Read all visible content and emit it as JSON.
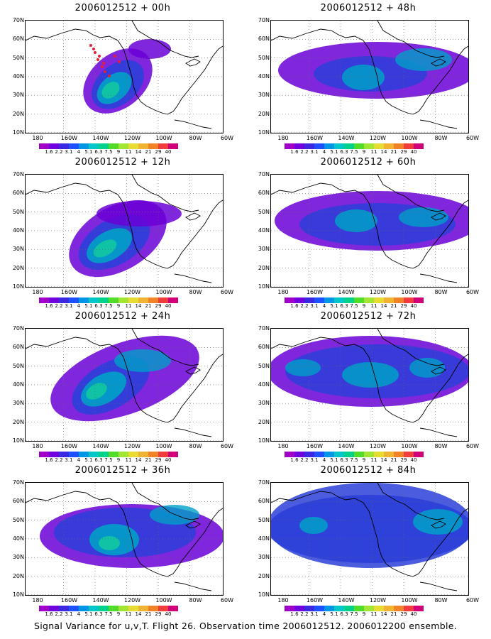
{
  "panels": [
    {
      "title": "2006012512 + 00h",
      "blobs": [
        [
          130,
          85,
          55,
          38,
          -40,
          "#6a00d6",
          0.85
        ],
        [
          130,
          90,
          42,
          28,
          -40,
          "#2b3fd8",
          0.9
        ],
        [
          125,
          95,
          28,
          18,
          -40,
          "#00a0c8",
          0.9
        ],
        [
          120,
          98,
          14,
          10,
          -40,
          "#11c8a0",
          0.9
        ],
        [
          175,
          40,
          30,
          14,
          0,
          "#6a00d6",
          0.85
        ]
      ],
      "markers": true
    },
    {
      "title": "2006012512 + 48h",
      "blobs": [
        [
          150,
          70,
          140,
          40,
          0,
          "#6a00d6",
          0.85
        ],
        [
          140,
          75,
          80,
          25,
          0,
          "#2b3fd8",
          0.85
        ],
        [
          130,
          80,
          30,
          18,
          0,
          "#00a0c8",
          0.85
        ],
        [
          215,
          55,
          40,
          16,
          0,
          "#00a0c8",
          0.8
        ]
      ],
      "markers": false
    },
    {
      "title": "2006012512 + 12h",
      "blobs": [
        [
          130,
          90,
          75,
          45,
          -30,
          "#6a00d6",
          0.85
        ],
        [
          125,
          95,
          55,
          32,
          -30,
          "#2b3fd8",
          0.9
        ],
        [
          118,
          100,
          35,
          20,
          -30,
          "#00a0c8",
          0.9
        ],
        [
          112,
          104,
          18,
          10,
          -30,
          "#11c8a0",
          0.9
        ],
        [
          160,
          55,
          60,
          18,
          0,
          "#6a00d6",
          0.85
        ]
      ],
      "markers": false
    },
    {
      "title": "2006012512 + 60h",
      "blobs": [
        [
          150,
          65,
          145,
          42,
          0,
          "#6a00d6",
          0.85
        ],
        [
          150,
          70,
          110,
          30,
          0,
          "#2b3fd8",
          0.85
        ],
        [
          120,
          65,
          30,
          16,
          0,
          "#00a0c8",
          0.85
        ],
        [
          215,
          60,
          35,
          14,
          0,
          "#00a0c8",
          0.8
        ]
      ],
      "markers": false
    },
    {
      "title": "2006012512 + 24h",
      "blobs": [
        [
          140,
          70,
          110,
          50,
          -20,
          "#6a00d6",
          0.85
        ],
        [
          120,
          80,
          60,
          32,
          -30,
          "#2b3fd8",
          0.9
        ],
        [
          110,
          85,
          35,
          20,
          -30,
          "#00a0c8",
          0.9
        ],
        [
          100,
          88,
          16,
          10,
          -30,
          "#11c8a0",
          0.9
        ],
        [
          165,
          45,
          40,
          16,
          0,
          "#00a0c8",
          0.8
        ]
      ],
      "markers": false
    },
    {
      "title": "2006012512 + 72h",
      "blobs": [
        [
          140,
          60,
          145,
          50,
          0,
          "#6a00d6",
          0.85
        ],
        [
          150,
          60,
          130,
          38,
          0,
          "#2b3fd8",
          0.85
        ],
        [
          140,
          65,
          40,
          18,
          0,
          "#00a0c8",
          0.85
        ],
        [
          45,
          55,
          25,
          12,
          0,
          "#00a0c8",
          0.8
        ],
        [
          220,
          55,
          25,
          14,
          0,
          "#00a0c8",
          0.8
        ]
      ],
      "markers": false
    },
    {
      "title": "2006012512 + 36h",
      "blobs": [
        [
          150,
          75,
          130,
          45,
          0,
          "#6a00d6",
          0.85
        ],
        [
          140,
          70,
          100,
          35,
          0,
          "#2b3fd8",
          0.85
        ],
        [
          125,
          80,
          35,
          22,
          0,
          "#00a0c8",
          0.9
        ],
        [
          118,
          85,
          15,
          10,
          0,
          "#11c8a0",
          0.9
        ],
        [
          210,
          45,
          35,
          14,
          0,
          "#00a0c8",
          0.8
        ]
      ],
      "markers": false
    },
    {
      "title": "2006012512 + 84h",
      "blobs": [
        [
          140,
          60,
          145,
          60,
          0,
          "#2b3fd8",
          0.85
        ],
        [
          140,
          65,
          145,
          48,
          0,
          "#2b3fd8",
          0.9
        ],
        [
          60,
          60,
          20,
          12,
          0,
          "#00a0c8",
          0.85
        ],
        [
          235,
          55,
          35,
          18,
          0,
          "#00a0c8",
          0.85
        ]
      ],
      "markers": false
    }
  ],
  "y_ticks": [
    "70N",
    "60N",
    "50N",
    "40N",
    "30N",
    "20N",
    "10N"
  ],
  "x_ticks": [
    "180",
    "160W",
    "140W",
    "120W",
    "100W",
    "80W",
    "60W"
  ],
  "colorbar": {
    "colors": [
      "#a000c8",
      "#7000e0",
      "#3c28e0",
      "#1e50ff",
      "#0096e6",
      "#00c8c8",
      "#00d28c",
      "#50dc28",
      "#a0e632",
      "#e6dc32",
      "#f0b432",
      "#f08228",
      "#f03c3c",
      "#d20078"
    ],
    "labels": [
      "1.6",
      "2.2",
      "3.1",
      "4",
      "5.1",
      "6.3",
      "7.5",
      "9",
      "11",
      "14",
      "21",
      "29",
      "40"
    ]
  },
  "caption": "Signal Variance for u,v,T. Flight 26. Observation time 2006012512. 2006012200 ensemble."
}
